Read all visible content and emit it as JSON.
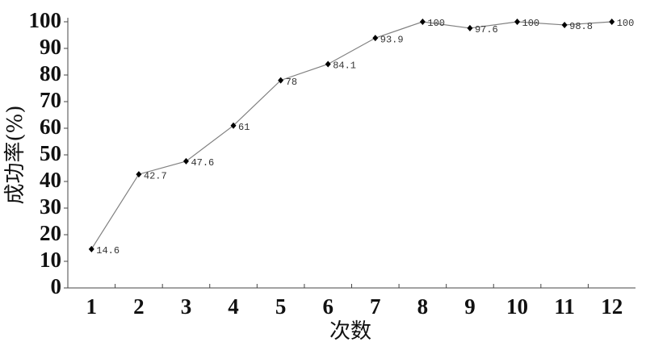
{
  "chart_data": {
    "type": "line",
    "x_label": "次数",
    "y_label": "成功率(%)",
    "categories": [
      "1",
      "2",
      "3",
      "4",
      "5",
      "6",
      "7",
      "8",
      "9",
      "10",
      "11",
      "12"
    ],
    "values": [
      14.6,
      42.7,
      47.6,
      61,
      78,
      84.1,
      93.9,
      100,
      97.6,
      100,
      98.8,
      100
    ],
    "color": "#808080",
    "marker_color": "#000000",
    "ylim": [
      0,
      100
    ],
    "yticks": [
      0,
      10,
      20,
      30,
      40,
      50,
      60,
      70,
      80,
      90,
      100
    ],
    "grid": false
  }
}
